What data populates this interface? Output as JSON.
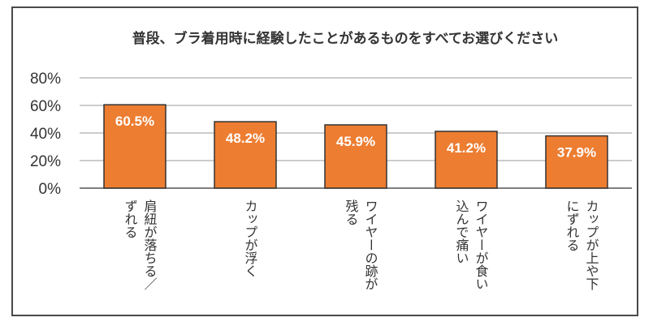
{
  "chart_data": {
    "type": "bar",
    "title": "普段、ブラ着用時に経験したことがあるものをすべてお選びください",
    "categories": [
      [
        "肩紐が落ちる／",
        "ずれる"
      ],
      [
        "カップが浮く"
      ],
      [
        "ワイヤーの跡が",
        "残る"
      ],
      [
        "ワイヤーが食い",
        "込んで痛い"
      ],
      [
        "カップが上や下",
        "にずれる"
      ]
    ],
    "values": [
      60.5,
      48.2,
      45.9,
      41.2,
      37.9
    ],
    "data_labels": [
      "60.5%",
      "48.2%",
      "45.9%",
      "41.2%",
      "37.9%"
    ],
    "ylim": [
      0,
      80
    ],
    "yticks": [
      "0%",
      "20%",
      "40%",
      "60%",
      "80%"
    ],
    "ytick_values": [
      0,
      20,
      40,
      60,
      80
    ],
    "grid": true,
    "legend": "none",
    "bar_color": "#ed7d31",
    "bar_edge_color": "#333333"
  }
}
